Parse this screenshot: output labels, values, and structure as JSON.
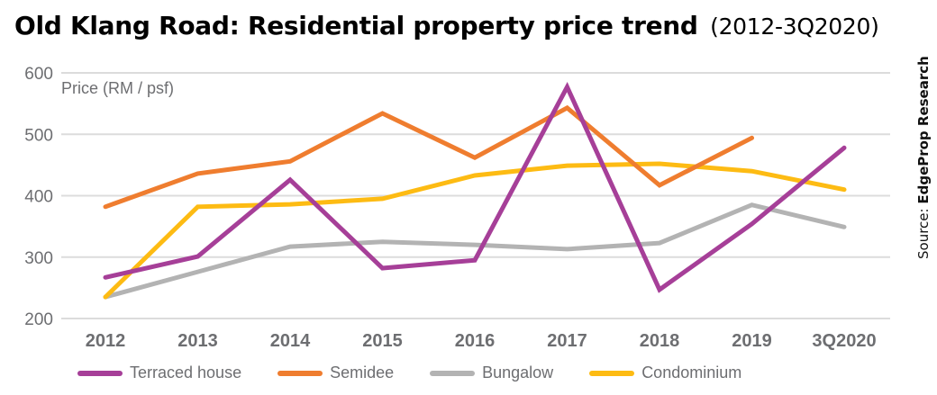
{
  "header": {
    "title": "Old Klang Road: Residential property price trend",
    "subtitle": "(2012-3Q2020)"
  },
  "source": {
    "prefix": "Source: ",
    "name": "EdgeProp Research"
  },
  "chart_data": {
    "type": "line",
    "title": "Old Klang Road: Residential property price trend (2012-3Q2020)",
    "xlabel": "",
    "ylabel": "Price (RM / psf)",
    "ylim": [
      200,
      600
    ],
    "yticks": [
      600,
      500,
      400,
      300,
      200
    ],
    "grid": true,
    "legend_position": "bottom",
    "categories": [
      "2012",
      "2013",
      "2014",
      "2015",
      "2016",
      "2017",
      "2018",
      "2019",
      "3Q2020"
    ],
    "series": [
      {
        "name": "Terraced house",
        "color": "#a63f98",
        "values": [
          267,
          301,
          426,
          282,
          295,
          577,
          247,
          354,
          478
        ]
      },
      {
        "name": "Semidee",
        "color": "#ef7d2f",
        "values": [
          382,
          436,
          456,
          534,
          462,
          543,
          417,
          494,
          null
        ]
      },
      {
        "name": "Bungalow",
        "color": "#b3b3b3",
        "values": [
          235,
          276,
          317,
          325,
          320,
          313,
          323,
          385,
          349
        ]
      },
      {
        "name": "Condominium",
        "color": "#fdbb13",
        "values": [
          235,
          382,
          386,
          395,
          433,
          449,
          452,
          440,
          410
        ]
      }
    ]
  }
}
